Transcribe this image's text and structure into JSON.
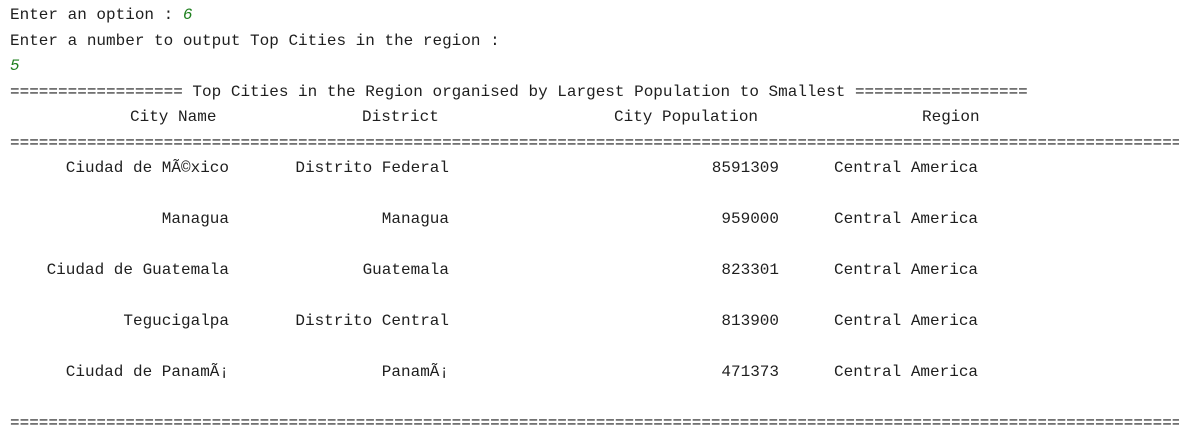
{
  "prompt_option": {
    "label": "Enter an option : ",
    "value": "6"
  },
  "prompt_number": {
    "label": "Enter a number to output Top Cities in the region :",
    "value": "5"
  },
  "report": {
    "title_rule": "================== Top Cities in the Region organised by Largest Population to Smallest ==================",
    "headers": {
      "city": "City Name",
      "district": "District",
      "population": "City Population",
      "region": "Region"
    },
    "separator": "=====================================================================================================================================================",
    "rows": [
      {
        "city": "Ciudad de MÃ©xico",
        "district": "Distrito Federal",
        "population": "8591309",
        "region": "Central America"
      },
      {
        "city": "Managua",
        "district": "Managua",
        "population": "959000",
        "region": "Central America"
      },
      {
        "city": "Ciudad de Guatemala",
        "district": "Guatemala",
        "population": "823301",
        "region": "Central America"
      },
      {
        "city": "Tegucigalpa",
        "district": "Distrito Central",
        "population": "813900",
        "region": "Central America"
      },
      {
        "city": "Ciudad de PanamÃ¡",
        "district": "PanamÃ¡",
        "population": "471373",
        "region": "Central America"
      }
    ],
    "footer_rule": "====================================================================================================================================================="
  }
}
